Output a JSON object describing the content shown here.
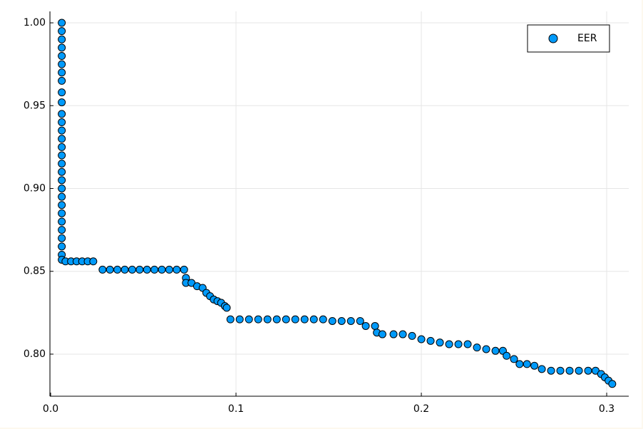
{
  "chart_data": {
    "type": "scatter",
    "xlim": [
      -0.0004,
      0.3119
    ],
    "ylim": [
      0.7746,
      1.0069
    ],
    "xticks": [
      {
        "value": 0,
        "label": "0.0"
      },
      0.1,
      0.2,
      0.3
    ],
    "yticks": [
      {
        "value": 0.8,
        "label": "0.80"
      },
      {
        "value": 0.85,
        "label": "0.85"
      },
      {
        "value": 0.9,
        "label": "0.90"
      },
      {
        "value": 0.95,
        "label": "0.95"
      },
      {
        "value": 1,
        "label": "1.00"
      }
    ],
    "grid": true,
    "legend": "top-right",
    "series": [
      {
        "name": "EER",
        "color": "#009afa",
        "x": [
          0.006,
          0.006,
          0.006,
          0.006,
          0.006,
          0.006,
          0.006,
          0.006,
          0.006,
          0.006,
          0.006,
          0.006,
          0.006,
          0.006,
          0.006,
          0.006,
          0.006,
          0.006,
          0.006,
          0.006,
          0.006,
          0.006,
          0.006,
          0.006,
          0.006,
          0.006,
          0.006,
          0.006,
          0.006,
          0.008,
          0.011,
          0.014,
          0.017,
          0.02,
          0.023,
          0.028,
          0.032,
          0.036,
          0.04,
          0.044,
          0.048,
          0.052,
          0.056,
          0.06,
          0.064,
          0.068,
          0.072,
          0.073,
          0.073,
          0.076,
          0.079,
          0.082,
          0.084,
          0.086,
          0.088,
          0.09,
          0.092,
          0.094,
          0.095,
          0.097,
          0.102,
          0.107,
          0.112,
          0.117,
          0.122,
          0.127,
          0.132,
          0.137,
          0.142,
          0.147,
          0.152,
          0.157,
          0.162,
          0.167,
          0.17,
          0.175,
          0.176,
          0.179,
          0.185,
          0.19,
          0.195,
          0.2,
          0.205,
          0.21,
          0.215,
          0.22,
          0.225,
          0.23,
          0.235,
          0.24,
          0.244,
          0.246,
          0.25,
          0.253,
          0.257,
          0.261,
          0.265,
          0.27,
          0.275,
          0.28,
          0.285,
          0.29,
          0.294,
          0.297,
          0.299,
          0.301,
          0.303
        ],
        "values": [
          1.0,
          0.995,
          0.99,
          0.985,
          0.98,
          0.975,
          0.97,
          0.965,
          0.958,
          0.952,
          0.945,
          0.94,
          0.935,
          0.93,
          0.925,
          0.92,
          0.915,
          0.91,
          0.905,
          0.9,
          0.895,
          0.89,
          0.885,
          0.88,
          0.875,
          0.87,
          0.865,
          0.86,
          0.857,
          0.856,
          0.856,
          0.856,
          0.856,
          0.856,
          0.856,
          0.851,
          0.851,
          0.851,
          0.851,
          0.851,
          0.851,
          0.851,
          0.851,
          0.851,
          0.851,
          0.851,
          0.851,
          0.846,
          0.843,
          0.843,
          0.841,
          0.84,
          0.837,
          0.835,
          0.833,
          0.832,
          0.831,
          0.829,
          0.828,
          0.821,
          0.821,
          0.821,
          0.821,
          0.821,
          0.821,
          0.821,
          0.821,
          0.821,
          0.821,
          0.821,
          0.82,
          0.82,
          0.82,
          0.82,
          0.817,
          0.817,
          0.813,
          0.812,
          0.812,
          0.812,
          0.811,
          0.809,
          0.808,
          0.807,
          0.806,
          0.806,
          0.806,
          0.804,
          0.803,
          0.802,
          0.802,
          0.799,
          0.797,
          0.794,
          0.794,
          0.793,
          0.791,
          0.79,
          0.79,
          0.79,
          0.79,
          0.79,
          0.79,
          0.788,
          0.786,
          0.784,
          0.782
        ]
      }
    ]
  }
}
